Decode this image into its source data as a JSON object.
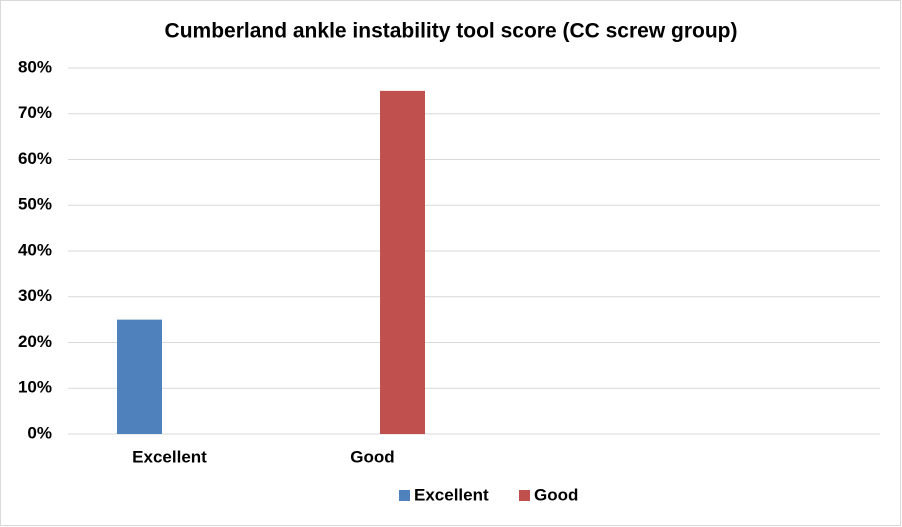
{
  "chart_data": {
    "type": "bar",
    "title": "Cumberland ankle instability tool score (CC screw group)",
    "categories": [
      "Excellent",
      "Good",
      null,
      null
    ],
    "series": [
      {
        "name": "Excellent",
        "color": "#4f81bd",
        "values": [
          25,
          null,
          null,
          null
        ]
      },
      {
        "name": "Good",
        "color": "#c0504d",
        "values": [
          null,
          75,
          null,
          null
        ]
      }
    ],
    "ylim": [
      0,
      80
    ],
    "yticks": [
      {
        "value": 0,
        "label": "0%"
      },
      {
        "value": 10,
        "label": "10%"
      },
      {
        "value": 20,
        "label": "20%"
      },
      {
        "value": 30,
        "label": "30%"
      },
      {
        "value": 40,
        "label": "40%"
      },
      {
        "value": 50,
        "label": "50%"
      },
      {
        "value": 60,
        "label": "60%"
      },
      {
        "value": 70,
        "label": "70%"
      },
      {
        "value": 80,
        "label": "80%"
      }
    ],
    "grid": true,
    "legend": "bottom"
  }
}
